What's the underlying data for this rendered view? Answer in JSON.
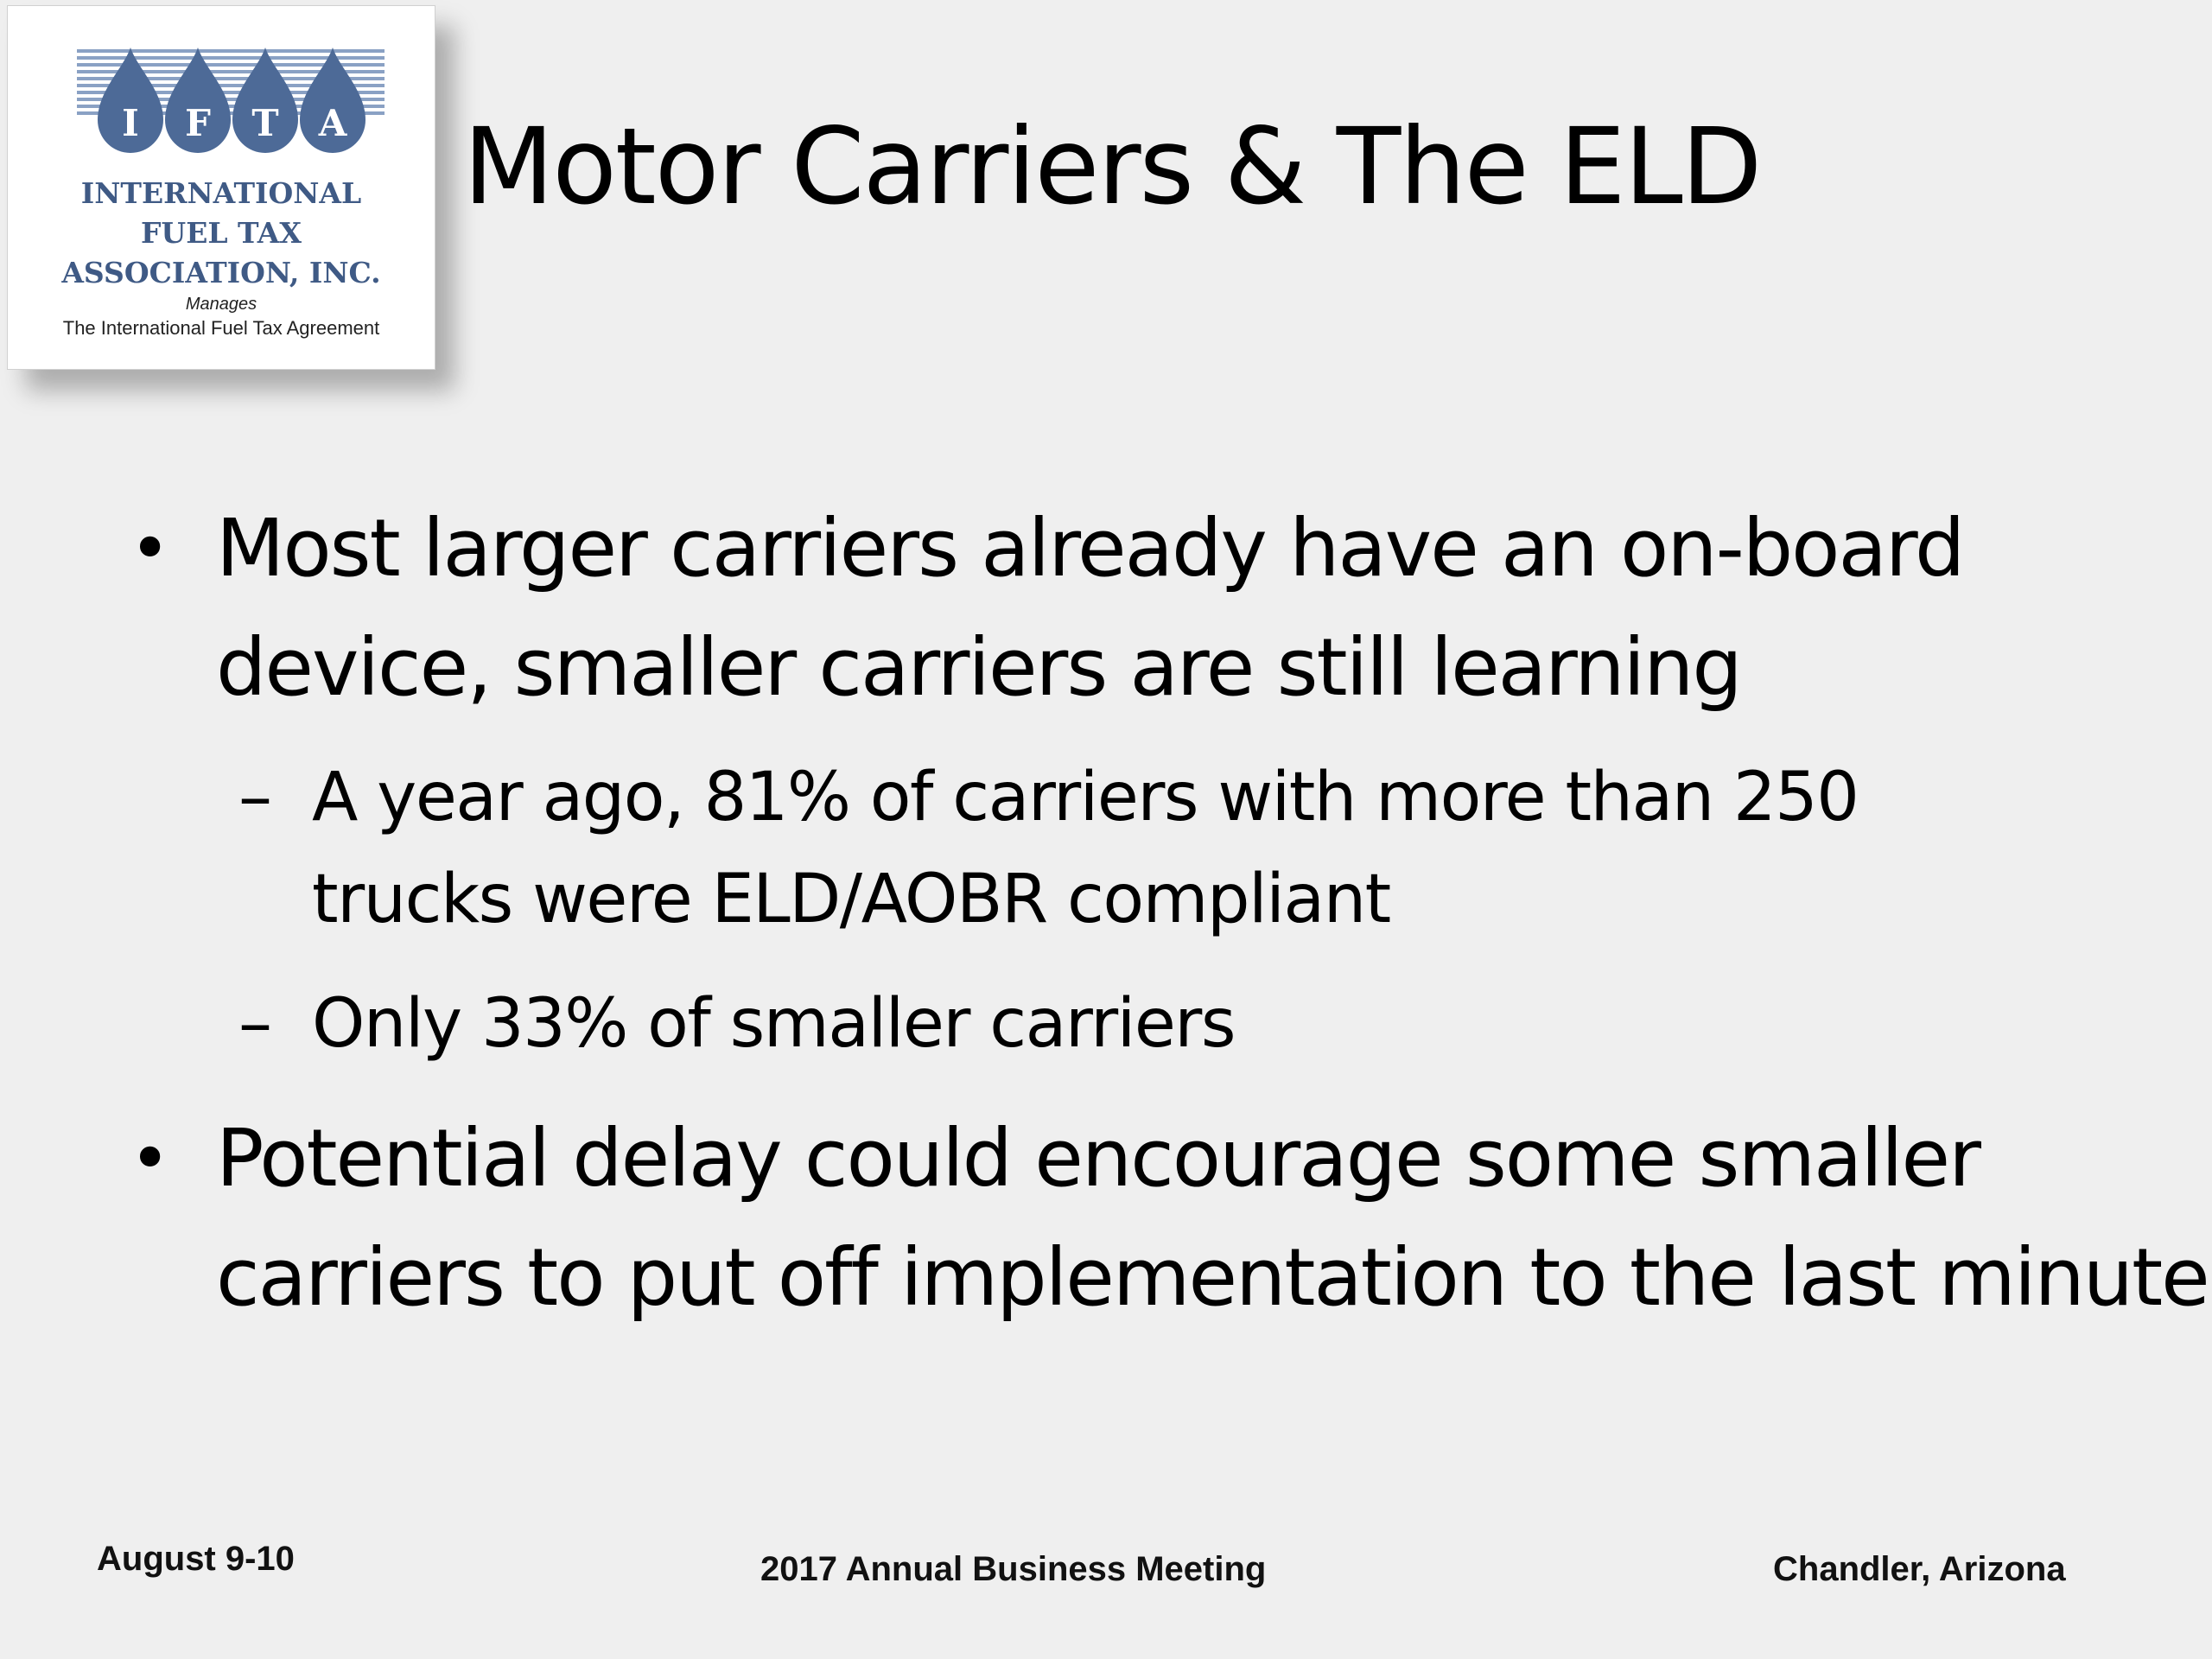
{
  "logo": {
    "letters": [
      "I",
      "F",
      "T",
      "A"
    ],
    "org_line1": "INTERNATIONAL",
    "org_line2": "FUEL TAX",
    "org_line3": "ASSOCIATION, INC.",
    "manages": "Manages",
    "agreement": "The International Fuel Tax Agreement",
    "colors": {
      "drop": "#4d6a97",
      "stripe": "#8aa1c4",
      "text": "#3f5a85"
    }
  },
  "slide": {
    "title": "Motor Carriers & The ELD",
    "bullets": [
      {
        "mark": "•",
        "text": "Most larger carriers already have an on-board device, smaller carriers are still learning",
        "subs": [
          {
            "mark": "–",
            "text": "A year ago, 81% of carriers with more than 250 trucks were ELD/AOBR compliant"
          },
          {
            "mark": "–",
            "text": "Only 33% of smaller carriers"
          }
        ]
      },
      {
        "mark": "•",
        "text": "Potential delay could encourage some smaller carriers to put off implementation to the last minute",
        "subs": []
      }
    ]
  },
  "footer": {
    "left": "August 9-10",
    "center": "2017 Annual Business Meeting",
    "right": "Chandler, Arizona"
  }
}
